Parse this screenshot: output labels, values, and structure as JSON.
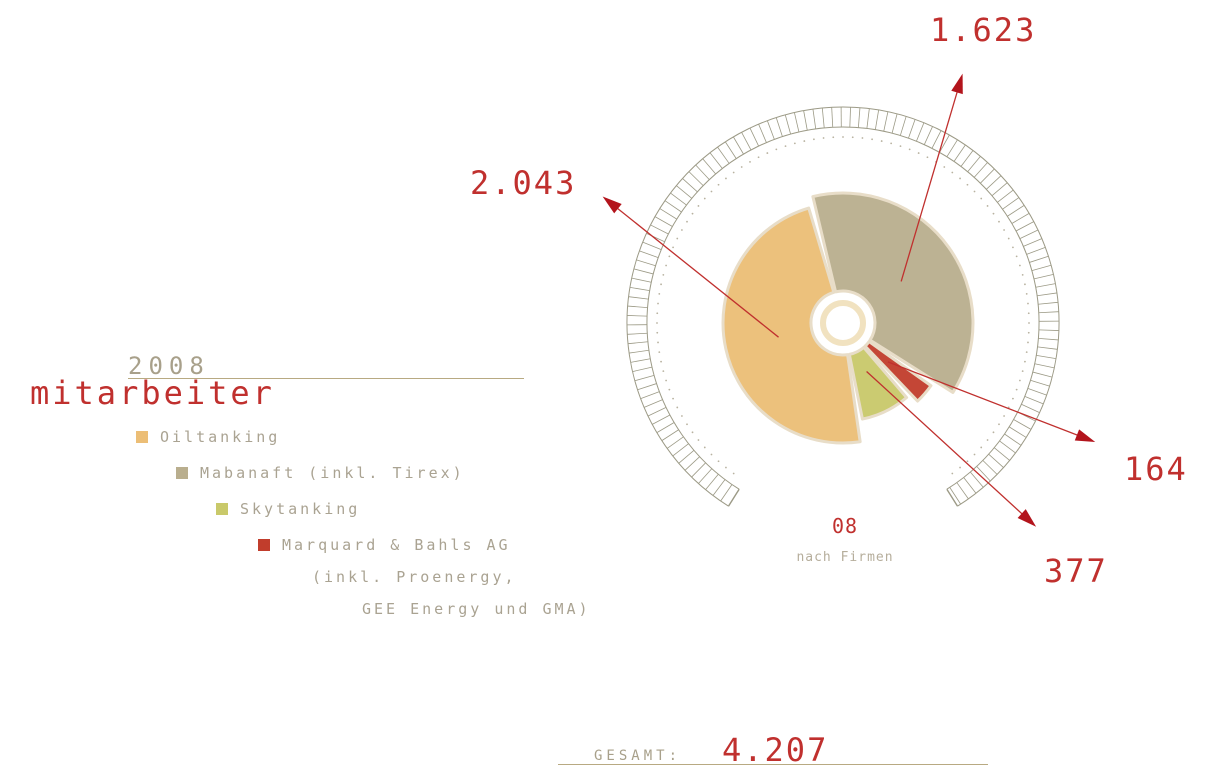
{
  "header": {
    "year": "2008",
    "title": "mitarbeiter"
  },
  "legend": [
    {
      "label": "Oiltanking",
      "color": "#ecbe76"
    },
    {
      "label": "Mabanaft (inkl. Tirex)",
      "color": "#b9ae8e"
    },
    {
      "label": "Skytanking",
      "color": "#c9c96a"
    },
    {
      "label": "Marquard & Bahls AG",
      "color": "#c13d2c"
    }
  ],
  "legend_extra": [
    "(inkl. Proenergy,",
    "GEE Energy und GMA)"
  ],
  "center": {
    "year": "08",
    "subtitle": "nach Firmen"
  },
  "total": {
    "label": "GESAMT:",
    "value": "4.207"
  },
  "colors": {
    "accent": "#c0302e",
    "ring": "#9c9a86"
  },
  "chart_data": {
    "type": "pie",
    "title": "mitarbeiter",
    "subtitle": "2008",
    "slices": [
      {
        "name": "Oiltanking",
        "value": 2043,
        "label": "2.043",
        "color": "#ecbe76"
      },
      {
        "name": "Mabanaft (inkl. Tirex)",
        "value": 1623,
        "label": "1.623",
        "color": "#b9ae8e"
      },
      {
        "name": "Marquard & Bahls AG",
        "value": 164,
        "label": "164",
        "color": "#c13d2c"
      },
      {
        "name": "Skytanking",
        "value": 377,
        "label": "377",
        "color": "#c9c96a"
      }
    ],
    "total": 4207,
    "legend_position": "left"
  }
}
